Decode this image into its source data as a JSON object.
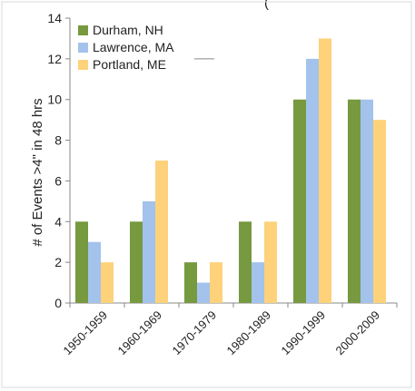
{
  "chart_data": {
    "type": "bar",
    "title": "",
    "title_fragment": "(",
    "xlabel": "",
    "ylabel": "# of Events >4\" in 48 hrs",
    "ylim": [
      0,
      14
    ],
    "yticks": [
      0,
      2,
      4,
      6,
      8,
      10,
      12,
      14
    ],
    "categories": [
      "1950-1959",
      "1960-1969",
      "1970-1979",
      "1980-1989",
      "1990-1999",
      "2000-2009"
    ],
    "series": [
      {
        "name": "Durham, NH",
        "color": "#77993f",
        "values": [
          4,
          4,
          2,
          4,
          10,
          10
        ]
      },
      {
        "name": "Lawrence, MA",
        "color": "#a3c2ec",
        "values": [
          3,
          5,
          1,
          2,
          12,
          10
        ]
      },
      {
        "name": "Portland, ME",
        "color": "#fdd27a",
        "values": [
          2,
          7,
          2,
          4,
          13,
          9
        ]
      }
    ],
    "grid": false,
    "legend_position": "top-left"
  }
}
